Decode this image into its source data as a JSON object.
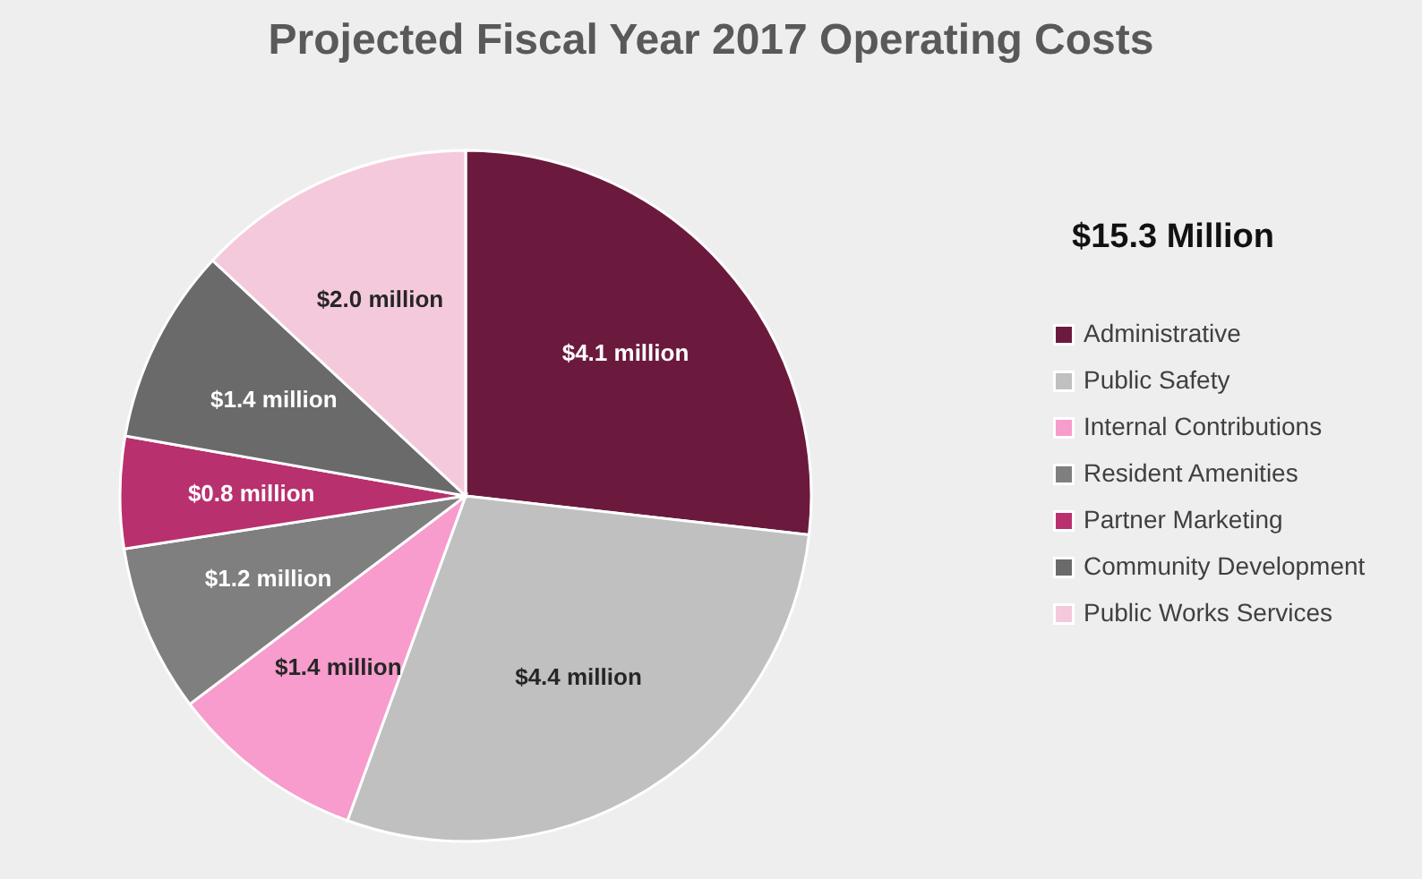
{
  "chart_data": {
    "type": "pie",
    "title": "Projected Fiscal Year 2017 Operating Costs",
    "categories": [
      "Administrative",
      "Public Safety",
      "Internal Contributions",
      "Resident Amenities",
      "Partner Marketing",
      "Community Development",
      "Public Works Services"
    ],
    "values": [
      4.1,
      4.4,
      1.4,
      1.2,
      0.8,
      1.4,
      2.0
    ],
    "value_labels": [
      "$4.1 million",
      "$4.4 million",
      "$1.4 million",
      "$1.2 million",
      "$0.8 million",
      "$1.4 million",
      "$2.0 million"
    ],
    "colors": [
      "#6b1a3e",
      "#c0c0c0",
      "#f79ccc",
      "#7f7f7f",
      "#b8306e",
      "#6a6a6a",
      "#f4c9dc"
    ],
    "annotations": [
      "$15.3 Million"
    ],
    "legend": "right"
  }
}
